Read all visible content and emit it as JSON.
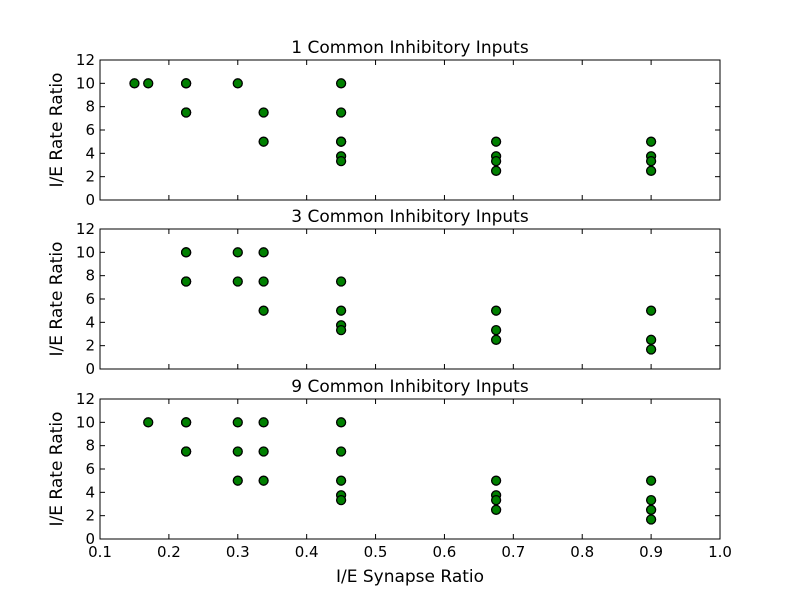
{
  "chart_data": [
    {
      "type": "scatter",
      "title": "1 Common Inhibitory Inputs",
      "xlabel": "",
      "ylabel": "I/E Rate Ratio",
      "xlim": [
        0.1,
        1.0
      ],
      "ylim": [
        0,
        12
      ],
      "xticks": [],
      "yticks": [
        "0",
        "2",
        "4",
        "6",
        "8",
        "10",
        "12"
      ],
      "grid": false,
      "series": [
        {
          "x": [
            0.15,
            0.17,
            0.225,
            0.225,
            0.225,
            0.225,
            0.3,
            0.3375,
            0.3375,
            0.45,
            0.45,
            0.45,
            0.45,
            0.45,
            0.45,
            0.675,
            0.675,
            0.675,
            0.675,
            0.9,
            0.9,
            0.9,
            0.9
          ],
          "y": [
            10,
            10,
            10,
            10,
            7.5,
            7.5,
            10,
            7.5,
            5,
            10,
            7.5,
            5,
            3.75,
            3.33,
            5,
            5,
            3.75,
            3.33,
            2.5,
            5,
            3.75,
            3.33,
            2.5
          ]
        }
      ]
    },
    {
      "type": "scatter",
      "title": "3 Common Inhibitory Inputs",
      "xlabel": "",
      "ylabel": "I/E Rate Ratio",
      "xlim": [
        0.1,
        1.0
      ],
      "ylim": [
        0,
        12
      ],
      "xticks": [],
      "yticks": [
        "0",
        "2",
        "4",
        "6",
        "8",
        "10",
        "12"
      ],
      "grid": false,
      "series": [
        {
          "x": [
            0.225,
            0.225,
            0.225,
            0.225,
            0.3,
            0.3,
            0.3375,
            0.3375,
            0.3375,
            0.45,
            0.45,
            0.45,
            0.45,
            0.675,
            0.675,
            0.675,
            0.9,
            0.9,
            0.9
          ],
          "y": [
            10,
            10,
            7.5,
            7.5,
            10,
            7.5,
            10,
            7.5,
            5,
            7.5,
            5,
            3.75,
            3.33,
            5,
            3.33,
            2.5,
            5,
            2.5,
            1.67
          ]
        }
      ]
    },
    {
      "type": "scatter",
      "title": "9 Common Inhibitory Inputs",
      "xlabel": "I/E Synapse Ratio",
      "ylabel": "I/E Rate Ratio",
      "xlim": [
        0.1,
        1.0
      ],
      "ylim": [
        0,
        12
      ],
      "xticks": [
        "0.1",
        "0.2",
        "0.3",
        "0.4",
        "0.5",
        "0.6",
        "0.7",
        "0.8",
        "0.9",
        "1.0"
      ],
      "yticks": [
        "0",
        "2",
        "4",
        "6",
        "8",
        "10",
        "12"
      ],
      "grid": false,
      "series": [
        {
          "x": [
            0.17,
            0.225,
            0.225,
            0.225,
            0.225,
            0.3,
            0.3,
            0.3,
            0.3375,
            0.3375,
            0.3375,
            0.45,
            0.45,
            0.45,
            0.45,
            0.45,
            0.675,
            0.675,
            0.675,
            0.675,
            0.9,
            0.9,
            0.9,
            0.9
          ],
          "y": [
            10,
            10,
            10,
            7.5,
            7.5,
            10,
            7.5,
            5,
            10,
            7.5,
            5,
            10,
            7.5,
            5,
            3.75,
            3.33,
            5,
            3.75,
            3.33,
            2.5,
            5,
            3.33,
            2.5,
            1.67
          ]
        }
      ]
    }
  ],
  "colors": {
    "marker_fill": "#008000",
    "marker_edge": "#000000",
    "axes": "#000000",
    "background": "#ffffff"
  }
}
